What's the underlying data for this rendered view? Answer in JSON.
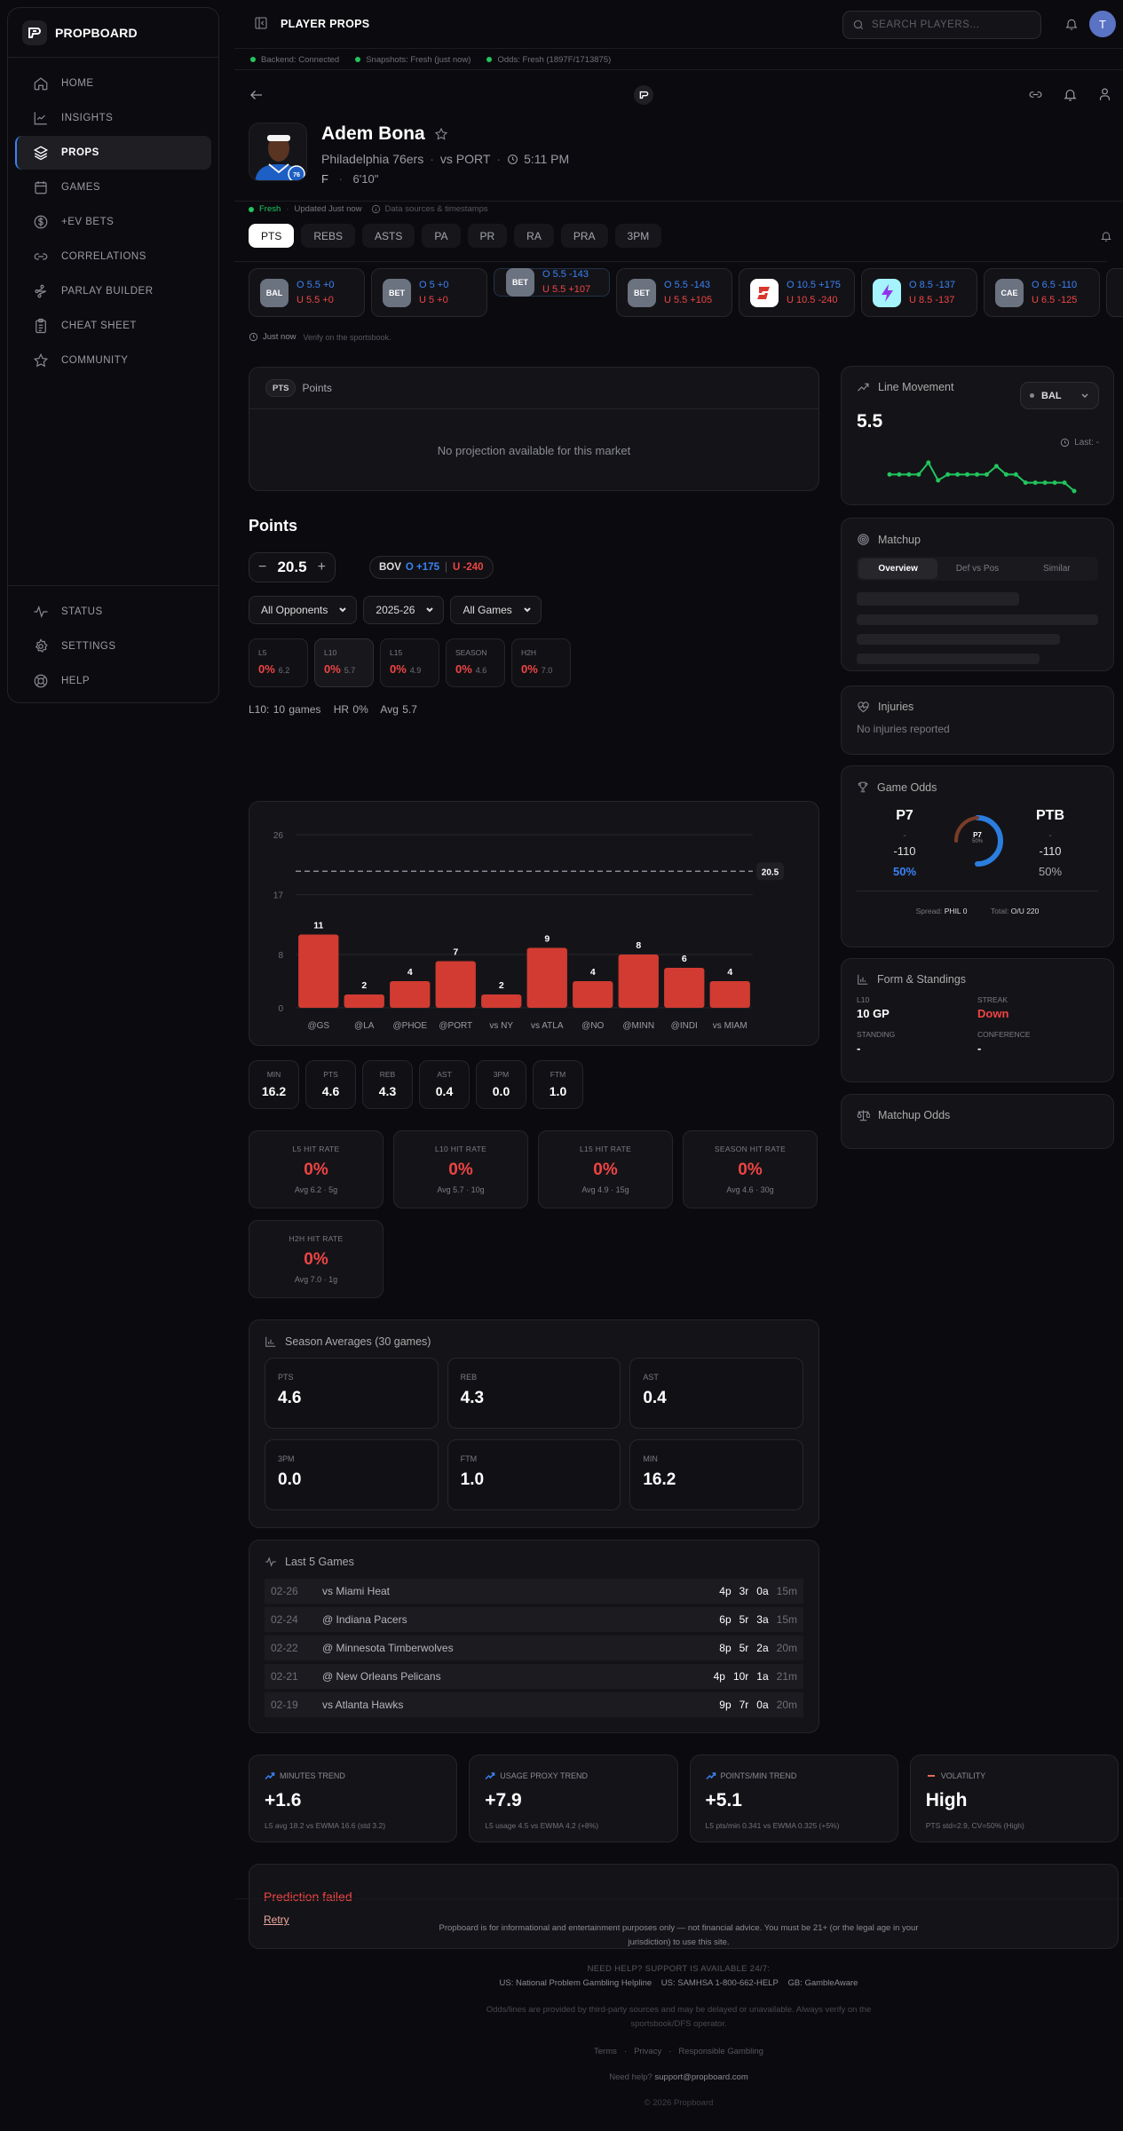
{
  "sidebar": {
    "brand": "PROPBOARD",
    "items": [
      {
        "label": "HOME",
        "icon": "home-icon"
      },
      {
        "label": "INSIGHTS",
        "icon": "chart-line-icon"
      },
      {
        "label": "PROPS",
        "icon": "layers-icon",
        "active": true
      },
      {
        "label": "GAMES",
        "icon": "calendar-icon"
      },
      {
        "label": "+EV BETS",
        "icon": "dollar-circle-icon"
      },
      {
        "label": "CORRELATIONS",
        "icon": "link-icon"
      },
      {
        "label": "PARLAY BUILDER",
        "icon": "route-icon"
      },
      {
        "label": "CHEAT SHEET",
        "icon": "clipboard-icon"
      },
      {
        "label": "COMMUNITY",
        "icon": "star-icon"
      }
    ],
    "bottom_items": [
      {
        "label": "STATUS",
        "icon": "activity-icon"
      },
      {
        "label": "SETTINGS",
        "icon": "gear-icon"
      },
      {
        "label": "HELP",
        "icon": "lifebuoy-icon"
      }
    ]
  },
  "header": {
    "title": "PLAYER PROPS",
    "search_placeholder": "SEARCH PLAYERS...",
    "avatar_initial": "T"
  },
  "status": {
    "backend": "Backend: Connected",
    "snapshots": "Snapshots: Fresh (just now)",
    "odds": "Odds: Fresh (1897F/1713875)"
  },
  "player": {
    "name": "Adem Bona",
    "team": "Philadelphia 76ers",
    "opponent": "vs PORT",
    "time": "5:11 PM",
    "position": "F",
    "height": "6'10\"",
    "fresh_label": "Fresh",
    "updated": "Updated Just now",
    "sources": "Data sources & timestamps"
  },
  "market_tabs": [
    "PTS",
    "REBS",
    "ASTS",
    "PA",
    "PR",
    "RA",
    "PRA",
    "3PM"
  ],
  "active_tab": "PTS",
  "books": [
    {
      "code": "BAL",
      "over": "O 5.5 +0",
      "under": "U 5.5 +0",
      "logo_bg": "#6b7280"
    },
    {
      "code": "BET",
      "over": "O 5 +0",
      "under": "U 5 +0",
      "logo_bg": "#6b7280"
    },
    {
      "code": "BET",
      "over": "O 5.5 -143",
      "under": "U 5.5 +107",
      "logo_bg": "#6b7280",
      "selected": true
    },
    {
      "code": "BET",
      "over": "O 5.5 -143",
      "under": "U 5.5 +105",
      "logo_bg": "#6b7280"
    },
    {
      "code": "",
      "over": "O 10.5 +175",
      "under": "U 10.5 -240",
      "logo_bg": "#ffffff"
    },
    {
      "code": "",
      "over": "O 8.5 -137",
      "under": "U 8.5 -137",
      "logo_bg": "#a5f3fc"
    },
    {
      "code": "CAE",
      "over": "O 6.5 -110",
      "under": "U 6.5 -125",
      "logo_bg": "#6b7280"
    }
  ],
  "books_meta": {
    "time": "Just now",
    "verify": "Verify on the sportsbook."
  },
  "projection": {
    "pill": "PTS",
    "title": "Points",
    "empty": "No projection available for this market"
  },
  "points": {
    "title": "Points",
    "line": "20.5",
    "minus": "−",
    "plus": "+",
    "bov_book": "BOV",
    "bov_over": "O +175",
    "bov_under": "U -240",
    "filters": [
      "All Opponents",
      "2025-26",
      "All Games"
    ],
    "hit_cards": [
      {
        "label": "L5",
        "pct": "0%",
        "avg": "6.2"
      },
      {
        "label": "L10",
        "pct": "0%",
        "avg": "5.7",
        "selected": true
      },
      {
        "label": "L15",
        "pct": "0%",
        "avg": "4.9"
      },
      {
        "label": "SEASON",
        "pct": "0%",
        "avg": "4.6"
      },
      {
        "label": "H2H",
        "pct": "0%",
        "avg": "7.0"
      }
    ],
    "summary": {
      "games": "L10: 10 games",
      "hr": "HR 0%",
      "avg": "Avg 5.7"
    }
  },
  "chart_data": {
    "type": "bar",
    "title": "",
    "categories": [
      "@GS",
      "@LA",
      "@PHOE",
      "@PORT",
      "vs NY",
      "vs ATLA",
      "@NO",
      "@MINN",
      "@INDI",
      "vs MIAM"
    ],
    "values": [
      11,
      2,
      4,
      7,
      2,
      9,
      4,
      8,
      6,
      4
    ],
    "yticks": [
      0,
      8,
      17,
      26
    ],
    "ylim": [
      0,
      26
    ],
    "reference_line": 20.5,
    "reference_label": "20.5",
    "bar_color": "#d13b32",
    "xlabel": "",
    "ylabel": "",
    "grid": true
  },
  "mini_stats": [
    {
      "label": "MIN",
      "value": "16.2"
    },
    {
      "label": "PTS",
      "value": "4.6"
    },
    {
      "label": "REB",
      "value": "4.3"
    },
    {
      "label": "AST",
      "value": "0.4"
    },
    {
      "label": "3PM",
      "value": "0.0"
    },
    {
      "label": "FTM",
      "value": "1.0"
    }
  ],
  "hit_rates": [
    {
      "label": "L5 HIT RATE",
      "pct": "0%",
      "sub": "Avg 6.2 · 5g"
    },
    {
      "label": "L10 HIT RATE",
      "pct": "0%",
      "sub": "Avg 5.7 · 10g"
    },
    {
      "label": "L15 HIT RATE",
      "pct": "0%",
      "sub": "Avg 4.9 · 15g"
    },
    {
      "label": "SEASON HIT RATE",
      "pct": "0%",
      "sub": "Avg 4.6 · 30g"
    },
    {
      "label": "H2H HIT RATE",
      "pct": "0%",
      "sub": "Avg 7.0 · 1g"
    }
  ],
  "season_averages": {
    "title": "Season Averages (30 games)",
    "stats": [
      {
        "label": "PTS",
        "value": "4.6"
      },
      {
        "label": "REB",
        "value": "4.3"
      },
      {
        "label": "AST",
        "value": "0.4"
      },
      {
        "label": "3PM",
        "value": "0.0"
      },
      {
        "label": "FTM",
        "value": "1.0"
      },
      {
        "label": "MIN",
        "value": "16.2"
      }
    ]
  },
  "last5": {
    "title": "Last 5 Games",
    "games": [
      {
        "date": "02-26",
        "opp": "vs Miami Heat",
        "p": "4p",
        "r": "3r",
        "a": "0a",
        "m": "15m"
      },
      {
        "date": "02-24",
        "opp": "@ Indiana Pacers",
        "p": "6p",
        "r": "5r",
        "a": "3a",
        "m": "15m"
      },
      {
        "date": "02-22",
        "opp": "@ Minnesota Timberwolves",
        "p": "8p",
        "r": "5r",
        "a": "2a",
        "m": "20m"
      },
      {
        "date": "02-21",
        "opp": "@ New Orleans Pelicans",
        "p": "4p",
        "r": "10r",
        "a": "1a",
        "m": "21m"
      },
      {
        "date": "02-19",
        "opp": "vs Atlanta Hawks",
        "p": "9p",
        "r": "7r",
        "a": "0a",
        "m": "20m"
      }
    ]
  },
  "trends": [
    {
      "label": "MINUTES TREND",
      "value": "+1.6",
      "sub": "L5 avg 18.2 vs EWMA 16.6 (std 3.2)",
      "icon": "trending-up-icon"
    },
    {
      "label": "USAGE PROXY TREND",
      "value": "+7.9",
      "sub": "L5 usage 4.5 vs EWMA 4.2 (+8%)",
      "icon": "trending-up-icon"
    },
    {
      "label": "POINTS/MIN TREND",
      "value": "+5.1",
      "sub": "L5 pts/min 0.341 vs EWMA 0.325 (+5%)",
      "icon": "trending-up-icon"
    },
    {
      "label": "VOLATILITY",
      "value": "High",
      "sub": "PTS std=2.9, CV=50% (High)",
      "icon": "minus-icon"
    }
  ],
  "prediction": {
    "error": "Prediction failed",
    "retry": "Retry"
  },
  "line_movement": {
    "title": "Line Movement",
    "book": "BAL",
    "value": "5.5",
    "last": "Last: -",
    "points": [
      5.5,
      5.5,
      5.5,
      5.5,
      6.5,
      5.0,
      5.5,
      5.5,
      5.5,
      5.5,
      5.5,
      6.2,
      5.5,
      5.5,
      4.8,
      4.8,
      4.8,
      4.8,
      4.8,
      4.1
    ]
  },
  "matchup": {
    "title": "Matchup",
    "tabs": [
      "Overview",
      "Def vs Pos",
      "Similar"
    ]
  },
  "injuries": {
    "title": "Injuries",
    "text": "No injuries reported"
  },
  "game_odds": {
    "title": "Game Odds",
    "home": {
      "abbr": "P7",
      "spread": "-",
      "ml": "-110",
      "pct": "50%"
    },
    "away": {
      "abbr": "PTB",
      "spread": "-",
      "ml": "-110",
      "pct": "50%"
    },
    "donut_label": "P7",
    "donut_pct": "50%",
    "spread_label": "Spread:",
    "spread_value": "PHIL 0",
    "total_label": "Total:",
    "total_value": "O/U 220"
  },
  "form": {
    "title": "Form & Standings",
    "l10_label": "L10",
    "l10": "10 GP",
    "streak_label": "STREAK",
    "streak": "Down",
    "standing_label": "STANDING",
    "standing": "-",
    "conference_label": "CONFERENCE",
    "conference": "-"
  },
  "matchup_odds": {
    "title": "Matchup Odds"
  },
  "footer": {
    "disclaimer": "Propboard is for informational and entertainment purposes only — not financial advice. You must be 21+ (or the legal age in your jurisdiction) to use this site.",
    "help_title": "NEED HELP? SUPPORT IS AVAILABLE 24/7:",
    "helplines": [
      "US: National Problem Gambling Helpline",
      "US: SAMHSA 1-800-662-HELP",
      "GB: GambleAware"
    ],
    "odds_note": "Odds/lines are provided by third-party sources and may be delayed or unavailable. Always verify on the sportsbook/DFS operator.",
    "links": [
      "Terms",
      "Privacy",
      "Responsible Gambling"
    ],
    "support_prefix": "Need help?",
    "support_email": "support@propboard.com",
    "copyright": "© 2026 Propboard"
  },
  "colors": {
    "accent": "#3b82f6",
    "over": "#3b82f6",
    "under": "#ef4444",
    "fresh": "#22c55e",
    "bar": "#d13b32"
  }
}
